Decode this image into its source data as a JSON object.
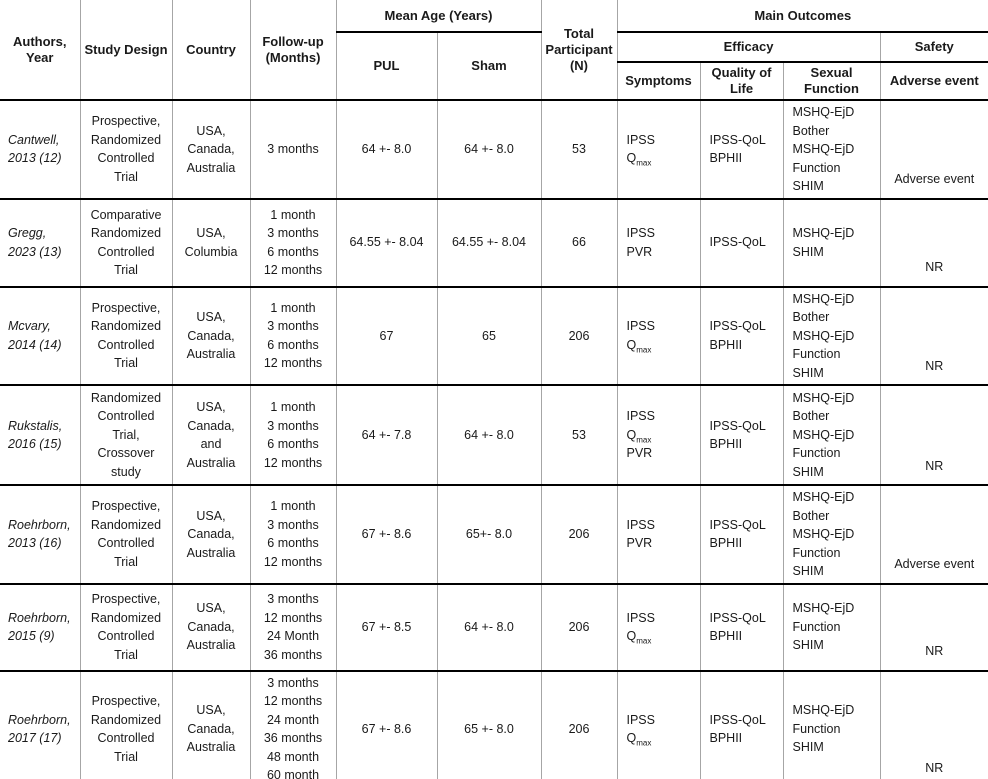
{
  "table": {
    "header": {
      "authors_year": "Authors, Year",
      "study_design": "Study Design",
      "country": "Country",
      "follow_up": [
        "Follow-up",
        "(Months)"
      ],
      "mean_age": "Mean Age (Years)",
      "pul": "PUL",
      "sham": "Sham",
      "total_participant": [
        "Total",
        "Participant",
        "(N)"
      ],
      "main_outcomes": "Main Outcomes",
      "efficacy": "Efficacy",
      "safety": "Safety",
      "symptoms": "Symptoms",
      "quality_of_life": "Quality of Life",
      "sexual_function": "Sexual Function",
      "adverse_event": "Adverse event"
    },
    "rows": [
      {
        "authors": [
          "Cantwell,",
          "2013 (12)"
        ],
        "study_design": [
          "Prospective,",
          "Randomized",
          "Controlled",
          "Trial"
        ],
        "country": [
          "USA,",
          "Canada,",
          "Australia"
        ],
        "follow_up": [
          "3 months"
        ],
        "pul_age": "64 +- 8.0",
        "sham_age": "64 +- 8.0",
        "total_n": "53",
        "symptoms": [
          "IPSS",
          "Q~max~"
        ],
        "quality_of_life": [
          "IPSS-QoL",
          "BPHII"
        ],
        "sexual_function": [
          "MSHQ-EjD",
          "Bother",
          "MSHQ-EjD",
          "Function",
          "SHIM"
        ],
        "safety": "Adverse event"
      },
      {
        "authors": [
          "Gregg,",
          "2023 (13)"
        ],
        "study_design": [
          "Comparative",
          "Randomized",
          "Controlled",
          "Trial"
        ],
        "country": [
          "USA,",
          "Columbia"
        ],
        "follow_up": [
          "1 month",
          "3 months",
          "6 months",
          "12 months"
        ],
        "pul_age": "64.55 +- 8.04",
        "sham_age": "64.55 +- 8.04",
        "total_n": "66",
        "symptoms": [
          "IPSS",
          "PVR"
        ],
        "quality_of_life": [
          "IPSS-QoL"
        ],
        "sexual_function": [
          "MSHQ-EjD",
          "SHIM"
        ],
        "safety": "NR"
      },
      {
        "authors": [
          "Mcvary,",
          "2014 (14)"
        ],
        "study_design": [
          "Prospective,",
          "Randomized",
          "Controlled",
          "Trial"
        ],
        "country": [
          "USA,",
          "Canada,",
          "Australia"
        ],
        "follow_up": [
          "1 month",
          "3 months",
          "6 months",
          "12 months"
        ],
        "pul_age": "67",
        "sham_age": "65",
        "total_n": "206",
        "symptoms": [
          "IPSS",
          "Q~max~"
        ],
        "quality_of_life": [
          "IPSS-QoL",
          "BPHII"
        ],
        "sexual_function": [
          "MSHQ-EjD",
          "Bother",
          "MSHQ-EjD",
          "Function",
          "SHIM"
        ],
        "safety": "NR"
      },
      {
        "authors": [
          "Rukstalis,",
          "2016 (15)"
        ],
        "study_design": [
          "Randomized",
          "Controlled",
          "Trial,",
          "Crossover",
          "study"
        ],
        "country": [
          "USA,",
          "Canada,",
          "and",
          "Australia"
        ],
        "follow_up": [
          "1 month",
          "3 months",
          "6 months",
          "12 months"
        ],
        "pul_age": "64 +- 7.8",
        "sham_age": "64 +- 8.0",
        "total_n": "53",
        "symptoms": [
          "IPSS",
          "Q~max~",
          "PVR"
        ],
        "quality_of_life": [
          "IPSS-QoL",
          "BPHII"
        ],
        "sexual_function": [
          "MSHQ-EjD",
          "Bother",
          "MSHQ-EjD",
          "Function",
          "SHIM"
        ],
        "safety": "NR"
      },
      {
        "authors": [
          "Roehrborn,",
          "2013 (16)"
        ],
        "study_design": [
          "Prospective,",
          "Randomized",
          "Controlled",
          "Trial"
        ],
        "country": [
          "USA,",
          "Canada,",
          "Australia"
        ],
        "follow_up": [
          "1 month",
          "3 months",
          "6 months",
          "12 months"
        ],
        "pul_age": "67 +- 8.6",
        "sham_age": "65+- 8.0",
        "total_n": "206",
        "symptoms": [
          "IPSS",
          "PVR"
        ],
        "quality_of_life": [
          "IPSS-QoL",
          "BPHII"
        ],
        "sexual_function": [
          "MSHQ-EjD",
          "Bother",
          "MSHQ-EjD",
          "Function",
          "SHIM"
        ],
        "safety": "Adverse event"
      },
      {
        "authors": [
          "Roehrborn,",
          "2015 (9)"
        ],
        "study_design": [
          "Prospective,",
          "Randomized",
          "Controlled",
          "Trial"
        ],
        "country": [
          "USA,",
          "Canada,",
          "Australia"
        ],
        "follow_up": [
          "3 months",
          "12 months",
          "24 Month",
          "36 months"
        ],
        "pul_age": "67 +- 8.5",
        "sham_age": "64 +- 8.0",
        "total_n": "206",
        "symptoms": [
          "IPSS",
          "Q~max~"
        ],
        "quality_of_life": [
          "IPSS-QoL",
          "BPHII"
        ],
        "sexual_function": [
          "MSHQ-EjD",
          "Function",
          "SHIM"
        ],
        "safety": "NR"
      },
      {
        "authors": [
          "Roehrborn,",
          "2017 (17)"
        ],
        "study_design": [
          "Prospective,",
          "Randomized",
          "Controlled",
          "Trial"
        ],
        "country": [
          "USA,",
          "Canada,",
          "Australia"
        ],
        "follow_up": [
          "3 months",
          "12 months",
          "24 month",
          "36 months",
          "48 month",
          "60 month"
        ],
        "pul_age": "67 +- 8.6",
        "sham_age": "65 +- 8.0",
        "total_n": "206",
        "symptoms": [
          "IPSS",
          "Q~max~"
        ],
        "quality_of_life": [
          "IPSS-QoL",
          "BPHII"
        ],
        "sexual_function": [
          "MSHQ-EjD",
          "Function",
          "SHIM"
        ],
        "safety": "NR"
      }
    ]
  }
}
